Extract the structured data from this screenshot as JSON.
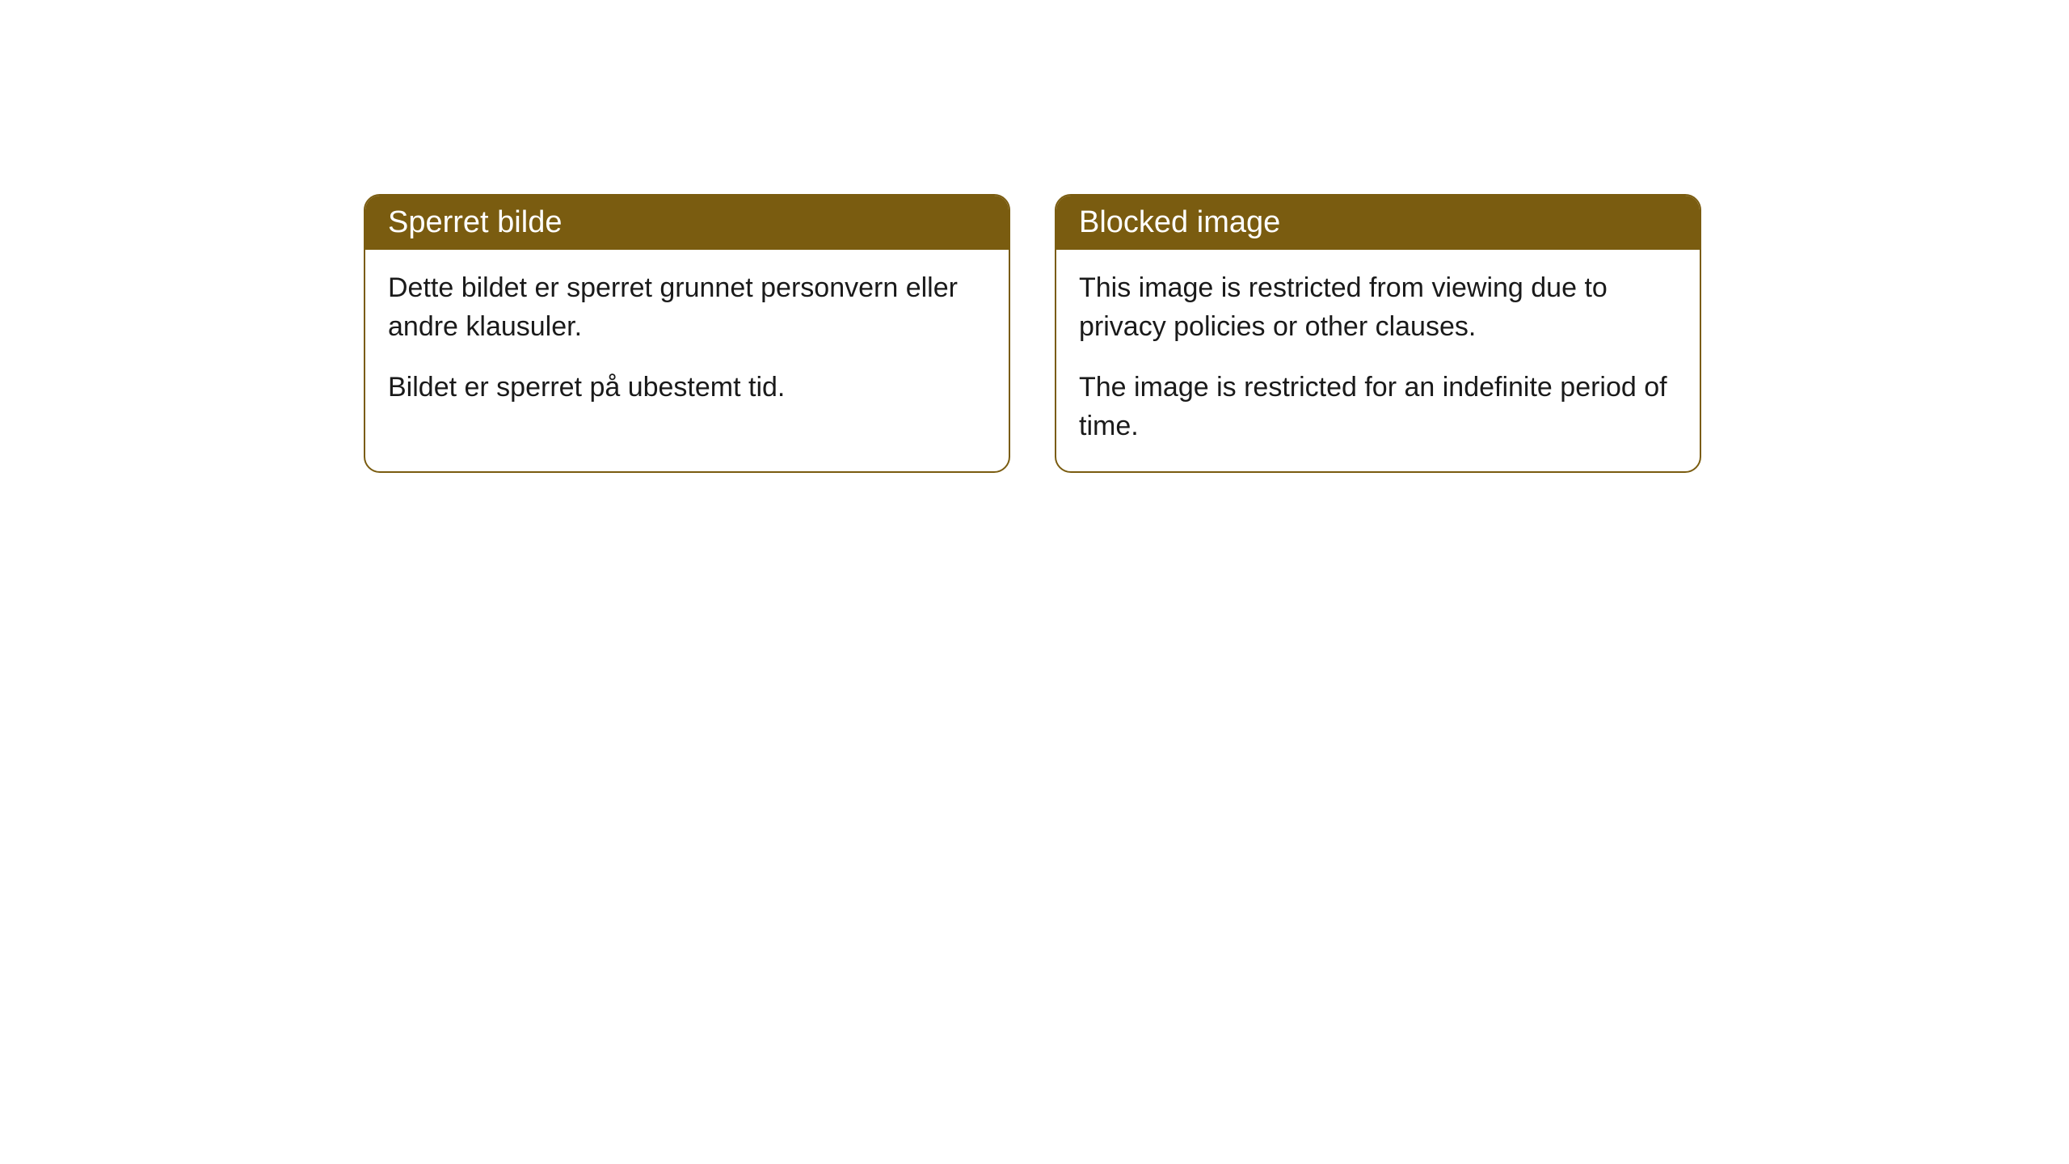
{
  "cards": [
    {
      "title": "Sperret bilde",
      "paragraph1": "Dette bildet er sperret grunnet personvern eller andre klausuler.",
      "paragraph2": "Bildet er sperret på ubestemt tid."
    },
    {
      "title": "Blocked image",
      "paragraph1": "This image is restricted from viewing due to privacy policies or other clauses.",
      "paragraph2": "The image is restricted for an indefinite period of time."
    }
  ],
  "style": {
    "header_bg": "#7a5c10",
    "header_text_color": "#ffffff",
    "border_color": "#7a5c10",
    "body_bg": "#ffffff",
    "body_text_color": "#1a1a1a",
    "border_radius": 20,
    "header_fontsize": 38,
    "body_fontsize": 34
  }
}
